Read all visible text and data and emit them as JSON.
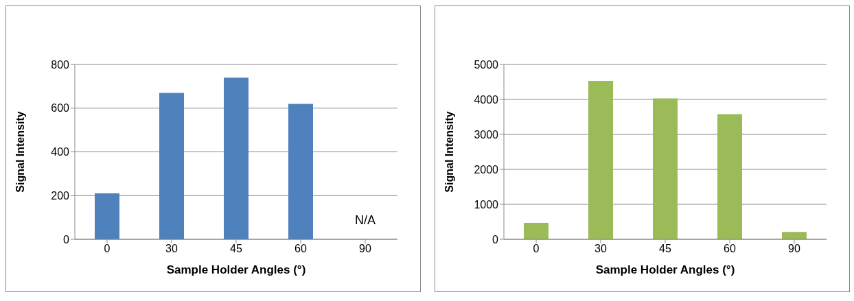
{
  "chart_data": [
    {
      "type": "bar",
      "categories": [
        "0",
        "30",
        "45",
        "60",
        "90"
      ],
      "values": [
        210,
        670,
        740,
        620,
        0
      ],
      "color": "#4f81bd",
      "xlabel": "Sample Holder Angles (°)",
      "ylabel": "Signal Intensity",
      "ylim": [
        0,
        800
      ],
      "yticks": [
        0,
        200,
        400,
        600,
        800
      ],
      "grid": "y",
      "annotations": [
        {
          "text": "N/A",
          "x": "90",
          "y": 0
        }
      ]
    },
    {
      "type": "bar",
      "categories": [
        "0",
        "30",
        "45",
        "60",
        "90"
      ],
      "values": [
        470,
        4530,
        4030,
        3580,
        210
      ],
      "color": "#9bbb59",
      "xlabel": "Sample Holder Angles (°)",
      "ylabel": "Signal Intensity",
      "ylim": [
        0,
        5000
      ],
      "yticks": [
        0,
        1000,
        2000,
        3000,
        4000,
        5000
      ],
      "grid": "y"
    }
  ]
}
